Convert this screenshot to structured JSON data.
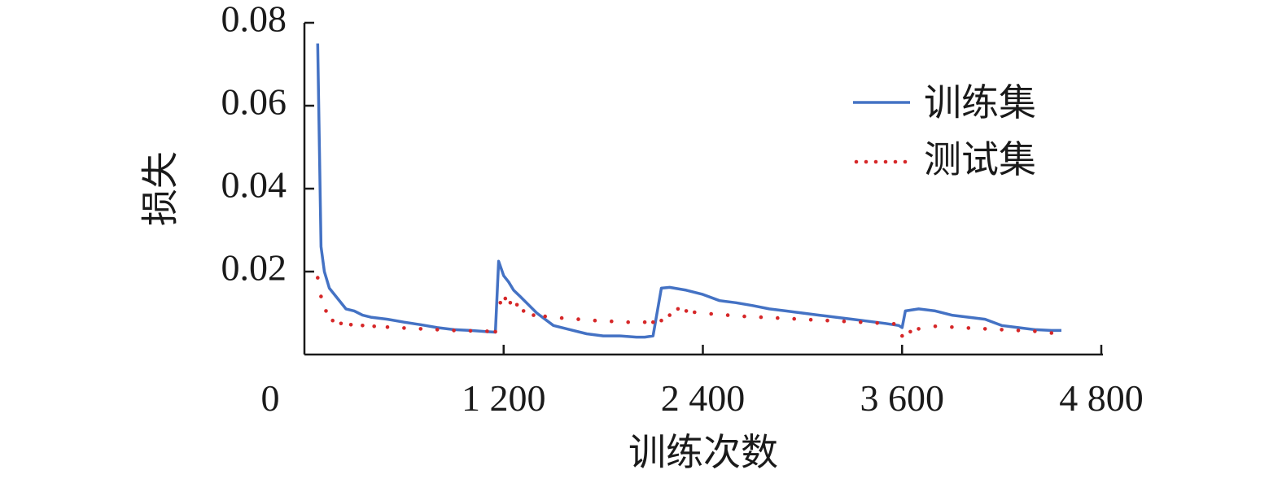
{
  "chart_data": {
    "type": "line",
    "title": "",
    "xlabel": "训练次数",
    "ylabel": "损失",
    "xlim": [
      0,
      4800
    ],
    "ylim": [
      0,
      0.08
    ],
    "x_ticks": [
      0,
      1200,
      2400,
      3600,
      4800
    ],
    "x_tick_labels": [
      "0",
      "1 200",
      "2 400",
      "3 600",
      "4 800"
    ],
    "y_ticks": [
      0.02,
      0.04,
      0.06,
      0.08
    ],
    "y_tick_labels": [
      "0.02",
      "0.04",
      "0.06",
      "0.08"
    ],
    "grid": false,
    "legend_position": "top-right",
    "series": [
      {
        "name": "训练集",
        "style": "solid",
        "color": "#4472C4",
        "x": [
          80,
          90,
          100,
          120,
          150,
          200,
          250,
          300,
          350,
          400,
          500,
          600,
          700,
          800,
          900,
          1000,
          1100,
          1150,
          1170,
          1200,
          1230,
          1260,
          1300,
          1400,
          1500,
          1600,
          1700,
          1800,
          1900,
          2000,
          2050,
          2100,
          2150,
          2200,
          2300,
          2400,
          2500,
          2600,
          2700,
          2800,
          2900,
          3000,
          3100,
          3200,
          3300,
          3400,
          3500,
          3580,
          3600,
          3620,
          3700,
          3800,
          3900,
          4000,
          4100,
          4200,
          4300,
          4400,
          4500,
          4560
        ],
        "y": [
          0.075,
          0.05,
          0.026,
          0.02,
          0.016,
          0.0135,
          0.011,
          0.0105,
          0.0095,
          0.009,
          0.0085,
          0.0078,
          0.0072,
          0.0065,
          0.006,
          0.0058,
          0.0055,
          0.0054,
          0.0225,
          0.019,
          0.0175,
          0.0155,
          0.014,
          0.01,
          0.007,
          0.006,
          0.005,
          0.0045,
          0.0045,
          0.0042,
          0.0042,
          0.0045,
          0.016,
          0.0162,
          0.0155,
          0.0145,
          0.013,
          0.0125,
          0.0118,
          0.011,
          0.0105,
          0.01,
          0.0095,
          0.009,
          0.0085,
          0.008,
          0.0075,
          0.007,
          0.0065,
          0.0105,
          0.011,
          0.0105,
          0.0095,
          0.009,
          0.0085,
          0.007,
          0.0065,
          0.006,
          0.0058,
          0.0058
        ]
      },
      {
        "name": "测试集",
        "style": "dotted",
        "color": "#D62728",
        "x": [
          80,
          100,
          130,
          170,
          220,
          280,
          350,
          420,
          500,
          600,
          700,
          800,
          900,
          1000,
          1100,
          1150,
          1180,
          1210,
          1240,
          1280,
          1320,
          1380,
          1450,
          1550,
          1650,
          1750,
          1850,
          1950,
          2050,
          2100,
          2150,
          2200,
          2250,
          2300,
          2350,
          2450,
          2550,
          2650,
          2750,
          2850,
          2950,
          3050,
          3150,
          3250,
          3350,
          3450,
          3550,
          3600,
          3650,
          3700,
          3800,
          3900,
          4000,
          4100,
          4200,
          4300,
          4400,
          4500
        ],
        "y": [
          0.0185,
          0.014,
          0.0105,
          0.0082,
          0.0075,
          0.0072,
          0.007,
          0.0068,
          0.0066,
          0.0064,
          0.0062,
          0.006,
          0.0058,
          0.0057,
          0.0056,
          0.0055,
          0.0125,
          0.0135,
          0.0125,
          0.012,
          0.0105,
          0.0095,
          0.0092,
          0.0088,
          0.0085,
          0.0082,
          0.008,
          0.0078,
          0.0078,
          0.0078,
          0.0082,
          0.0095,
          0.011,
          0.0105,
          0.0102,
          0.0098,
          0.0095,
          0.0092,
          0.009,
          0.0088,
          0.0086,
          0.0084,
          0.0082,
          0.008,
          0.0078,
          0.0076,
          0.0074,
          0.0045,
          0.0055,
          0.0062,
          0.0068,
          0.0066,
          0.0064,
          0.0062,
          0.006,
          0.0058,
          0.0056,
          0.0052
        ]
      }
    ]
  }
}
